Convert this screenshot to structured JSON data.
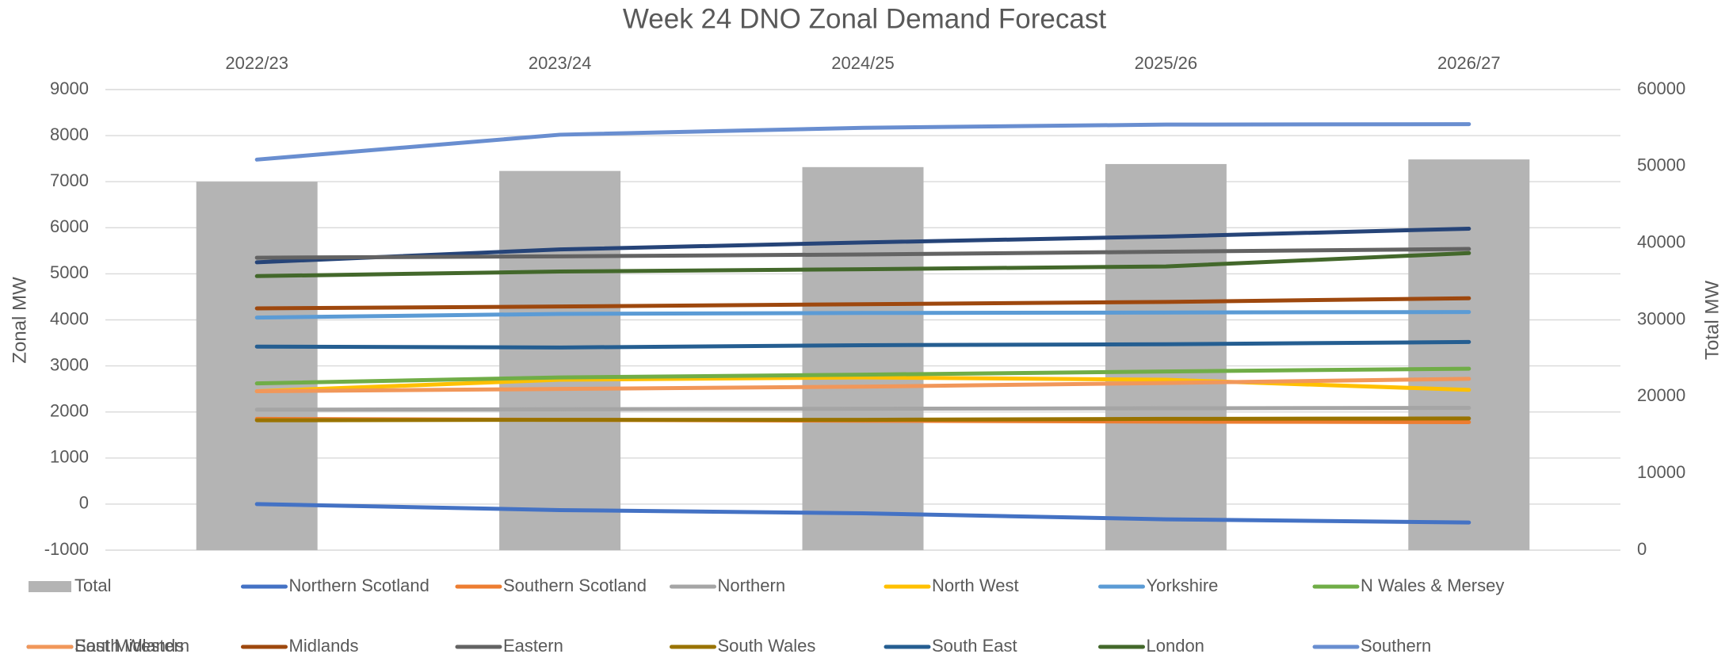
{
  "chart_data": {
    "type": "line",
    "title": "Week 24 DNO Zonal Demand Forecast",
    "y_label": "Zonal MW",
    "y2_label": "Total MW",
    "categories": [
      "2022/23",
      "2023/24",
      "2024/25",
      "2025/26",
      "2026/27"
    ],
    "ylim": [
      -1000,
      9000
    ],
    "yticks": [
      -1000,
      0,
      1000,
      2000,
      3000,
      4000,
      5000,
      6000,
      7000,
      8000,
      9000
    ],
    "y2lim": [
      0,
      60000
    ],
    "y2ticks": [
      0,
      10000,
      20000,
      30000,
      40000,
      50000,
      60000
    ],
    "grid": true,
    "legend": "bottom",
    "series": [
      {
        "name": "Total",
        "type": "bar",
        "axis": "y2",
        "color": "#b4b4b4",
        "values": [
          48000,
          49400,
          49900,
          50300,
          50900
        ]
      },
      {
        "name": "Northern Scotland",
        "color": "#4472c4",
        "values": [
          0,
          -130,
          -200,
          -330,
          -400
        ]
      },
      {
        "name": "Southern Scotland",
        "color": "#ed7d31",
        "values": [
          1850,
          1830,
          1810,
          1790,
          1780
        ]
      },
      {
        "name": "Northern",
        "color": "#a5a5a5",
        "values": [
          2050,
          2060,
          2070,
          2080,
          2090
        ]
      },
      {
        "name": "North West",
        "color": "#ffc000",
        "values": [
          2450,
          2700,
          2750,
          2700,
          2480
        ]
      },
      {
        "name": "Yorkshire",
        "color": "#5b9bd5",
        "values": [
          4050,
          4130,
          4150,
          4160,
          4170
        ]
      },
      {
        "name": "N Wales & Mersey",
        "color": "#70ad47",
        "values": [
          2620,
          2750,
          2810,
          2880,
          2940
        ]
      },
      {
        "name": "East Midlands",
        "color": "#264478",
        "values": [
          5250,
          5530,
          5680,
          5810,
          5980
        ]
      },
      {
        "name": "Midlands",
        "color": "#9e480e",
        "values": [
          4250,
          4290,
          4340,
          4390,
          4470
        ]
      },
      {
        "name": "Eastern",
        "color": "#636363",
        "values": [
          5350,
          5380,
          5420,
          5480,
          5540
        ]
      },
      {
        "name": "South Wales",
        "color": "#997300",
        "values": [
          1820,
          1830,
          1830,
          1850,
          1860
        ]
      },
      {
        "name": "South East",
        "color": "#255e91",
        "values": [
          3420,
          3400,
          3450,
          3470,
          3520
        ]
      },
      {
        "name": "London",
        "color": "#43682b",
        "values": [
          4950,
          5050,
          5100,
          5160,
          5450
        ]
      },
      {
        "name": "Southern",
        "color": "#698ed0",
        "values": [
          7480,
          8020,
          8170,
          8240,
          8250
        ]
      },
      {
        "name": "South Western",
        "color": "#f1975a",
        "values": [
          2450,
          2500,
          2550,
          2630,
          2720
        ]
      }
    ]
  }
}
